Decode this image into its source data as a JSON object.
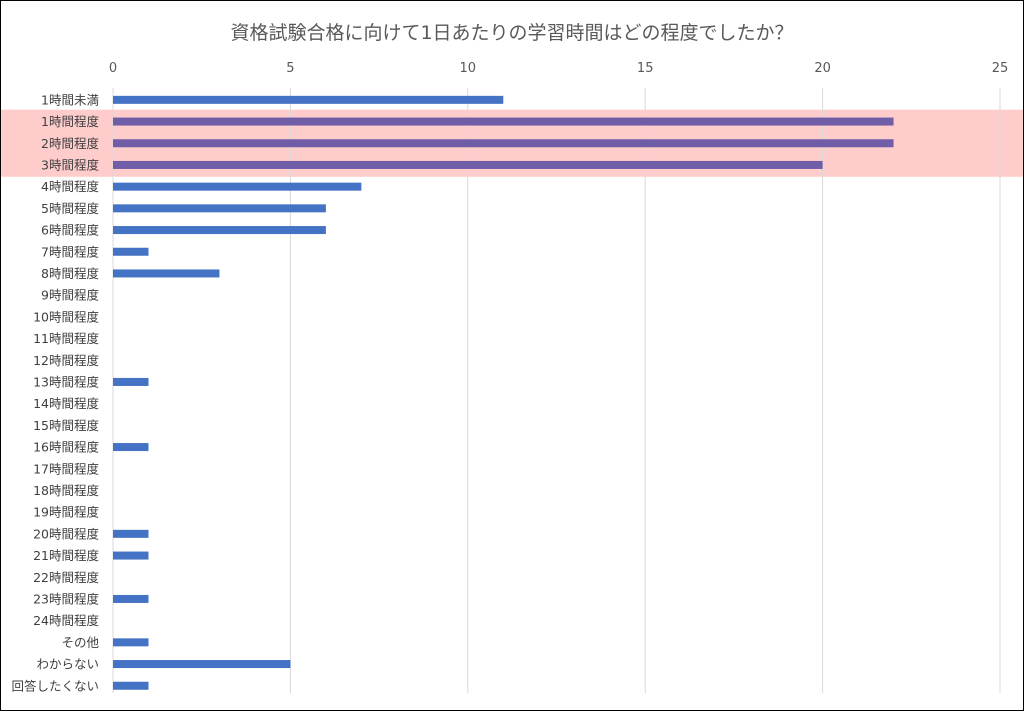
{
  "chart_data": {
    "type": "bar",
    "orientation": "horizontal",
    "title": "資格試験合格に向けて1日あたりの学習時間はどの程度でしたか？",
    "xlabel": "",
    "ylabel": "",
    "xlim": [
      0,
      25
    ],
    "x_ticks": [
      "0",
      "5",
      "10",
      "15",
      "20",
      "25"
    ],
    "x_tick_values": [
      0,
      5,
      10,
      15,
      20,
      25
    ],
    "axis_position": "top",
    "grid": true,
    "legend": "none",
    "categories": [
      "1時間未満",
      "1時間程度",
      "2時間程度",
      "3時間程度",
      "4時間程度",
      "5時間程度",
      "6時間程度",
      "7時間程度",
      "8時間程度",
      "9時間程度",
      "10時間程度",
      "11時間程度",
      "12時間程度",
      "13時間程度",
      "14時間程度",
      "15時間程度",
      "16時間程度",
      "17時間程度",
      "18時間程度",
      "19時間程度",
      "20時間程度",
      "21時間程度",
      "22時間程度",
      "23時間程度",
      "24時間程度",
      "その他",
      "わからない",
      "回答したくない"
    ],
    "values": [
      11,
      22,
      22,
      20,
      7,
      6,
      6,
      1,
      3,
      0,
      0,
      0,
      0,
      1,
      0,
      0,
      1,
      0,
      0,
      0,
      1,
      1,
      0,
      1,
      0,
      1,
      5,
      1
    ],
    "highlighted_categories": [
      "1時間程度",
      "2時間程度",
      "3時間程度"
    ],
    "colors": {
      "bar": "#4472c4",
      "bar_highlighted": "#6f5da8",
      "highlight_band": "#ffcccc",
      "grid": "#d9d9d9",
      "title": "#595959"
    }
  }
}
